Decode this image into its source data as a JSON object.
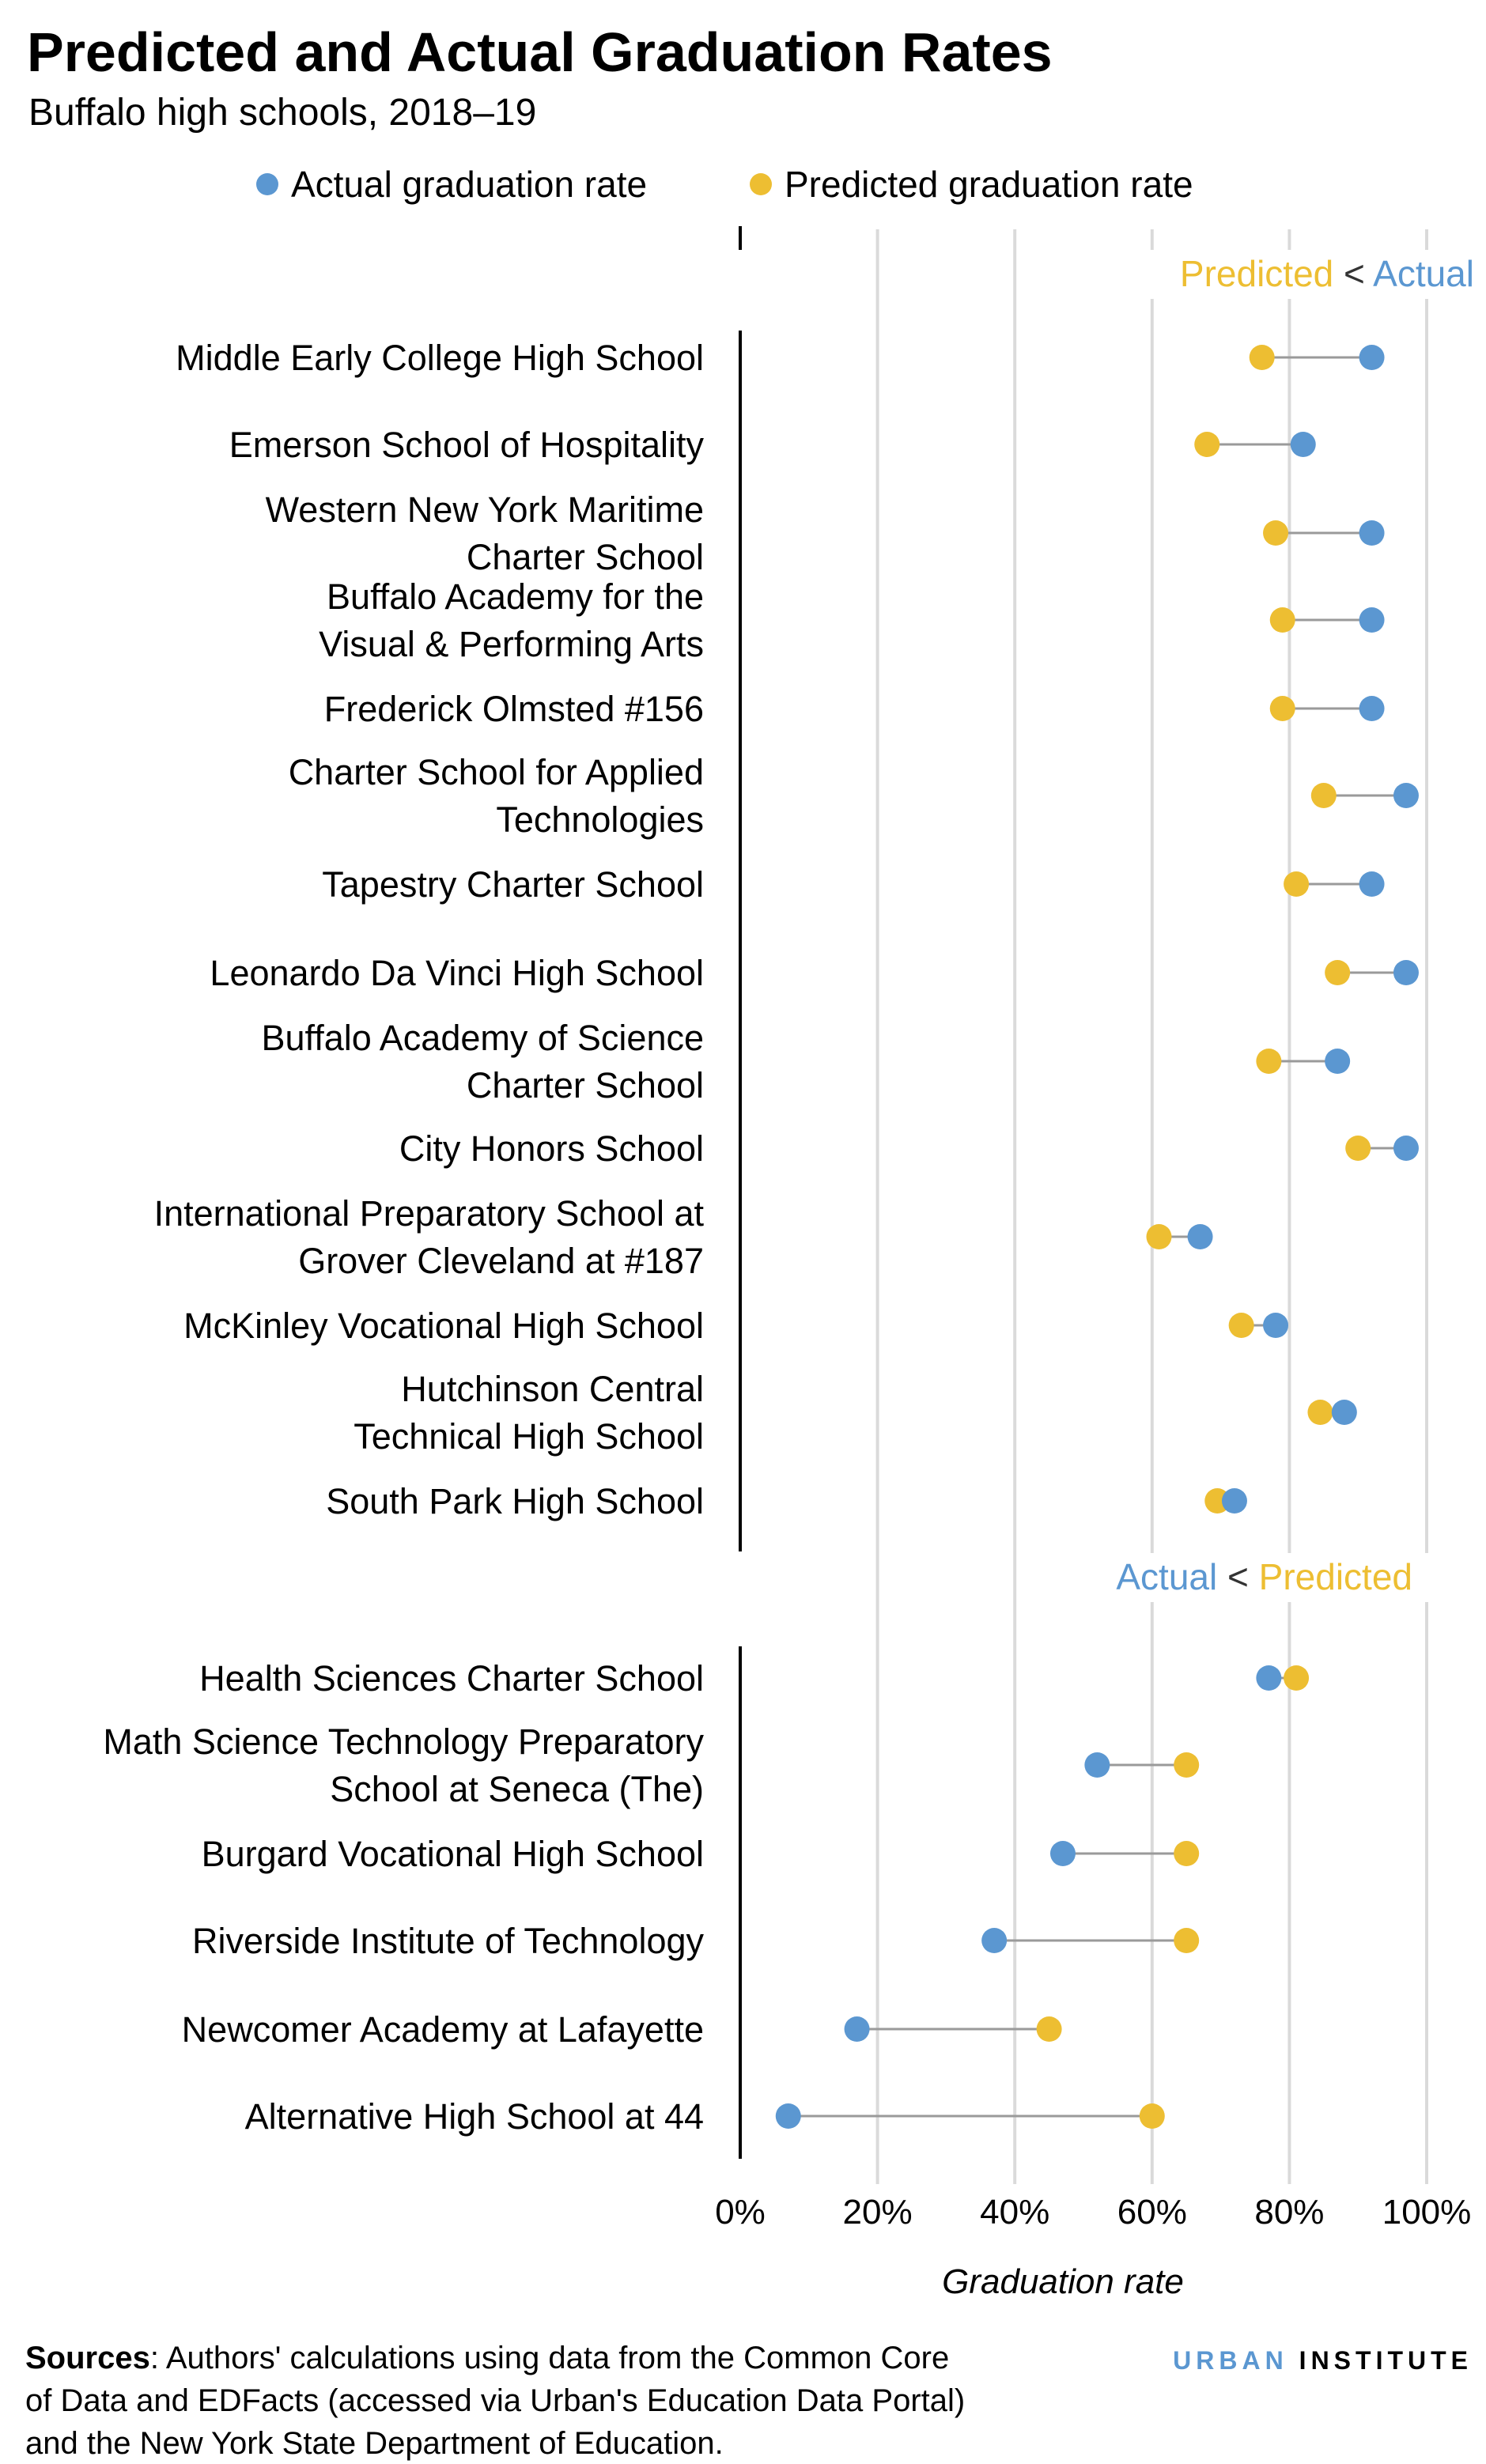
{
  "chart_data": {
    "type": "dot-range",
    "title": "Predicted and Actual Graduation Rates",
    "subtitle": "Buffalo high schools, 2018–19",
    "xlabel": "Graduation rate",
    "xlim": [
      0,
      100
    ],
    "x_ticks": [
      "0%",
      "20%",
      "40%",
      "60%",
      "80%",
      "100%"
    ],
    "grid": true,
    "legend_placement": "top",
    "colors": {
      "actual": "#5B97D1",
      "predicted": "#EDBE32",
      "connector": "#9A9A9A"
    },
    "legend": [
      {
        "key": "actual",
        "label": "Actual graduation rate"
      },
      {
        "key": "predicted",
        "label": "Predicted graduation rate"
      }
    ],
    "groups": [
      {
        "annotation": {
          "left": "Predicted",
          "sep": "<",
          "right": "Actual",
          "left_key": "predicted",
          "right_key": "actual"
        },
        "rows": [
          {
            "label": [
              "Middle Early College High School"
            ],
            "actual": 92,
            "predicted": 76
          },
          {
            "label": [
              "Emerson School of Hospitality"
            ],
            "actual": 82,
            "predicted": 68
          },
          {
            "label": [
              "Western New York Maritime",
              "Charter School"
            ],
            "actual": 92,
            "predicted": 78
          },
          {
            "label": [
              "Buffalo Academy for the",
              "Visual & Performing Arts"
            ],
            "actual": 92,
            "predicted": 79
          },
          {
            "label": [
              "Frederick Olmsted #156"
            ],
            "actual": 92,
            "predicted": 79
          },
          {
            "label": [
              "Charter School for Applied",
              "Technologies"
            ],
            "actual": 97,
            "predicted": 85
          },
          {
            "label": [
              "Tapestry Charter School"
            ],
            "actual": 92,
            "predicted": 81
          },
          {
            "label": [
              "Leonardo Da Vinci High School"
            ],
            "actual": 97,
            "predicted": 87
          },
          {
            "label": [
              "Buffalo Academy of Science",
              "Charter School"
            ],
            "actual": 87,
            "predicted": 77
          },
          {
            "label": [
              "City Honors School"
            ],
            "actual": 97,
            "predicted": 90
          },
          {
            "label": [
              "International Preparatory School at",
              "Grover Cleveland at #187"
            ],
            "actual": 67,
            "predicted": 61
          },
          {
            "label": [
              "McKinley Vocational High School"
            ],
            "actual": 78,
            "predicted": 73
          },
          {
            "label": [
              "Hutchinson Central",
              "Technical High School"
            ],
            "actual": 88,
            "predicted": 84.5
          },
          {
            "label": [
              "South Park High School"
            ],
            "actual": 72,
            "predicted": 69.5
          }
        ]
      },
      {
        "annotation": {
          "left": "Actual",
          "sep": "<",
          "right": "Predicted",
          "left_key": "actual",
          "right_key": "predicted"
        },
        "rows": [
          {
            "label": [
              "Health Sciences Charter School"
            ],
            "actual": 77,
            "predicted": 81
          },
          {
            "label": [
              "Math Science Technology Preparatory",
              "School at Seneca (The)"
            ],
            "actual": 52,
            "predicted": 65
          },
          {
            "label": [
              "Burgard Vocational High School"
            ],
            "actual": 47,
            "predicted": 65
          },
          {
            "label": [
              "Riverside Institute of Technology"
            ],
            "actual": 37,
            "predicted": 65
          },
          {
            "label": [
              "Newcomer Academy at Lafayette"
            ],
            "actual": 17,
            "predicted": 45
          },
          {
            "label": [
              "Alternative High School at 44"
            ],
            "actual": 7,
            "predicted": 60
          }
        ]
      }
    ]
  },
  "footer": {
    "sources_label": "Sources",
    "sources_lines": [
      ": Authors' calculations using data from the Common Core",
      "of Data and EDFacts (accessed via Urban's Education Data Portal)",
      "and the New York State Department of Education."
    ],
    "logo": {
      "part1": "URBAN",
      "part2": "INSTITUTE"
    }
  }
}
